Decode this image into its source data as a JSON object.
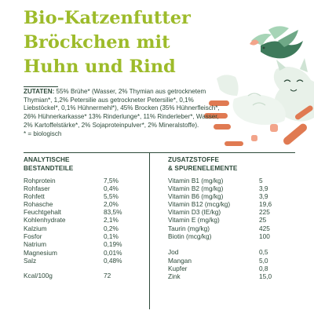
{
  "title": [
    "Bio-Katzenfutter",
    "Bröckchen mit",
    "Huhn und Rind"
  ],
  "ingredients": {
    "keyword": "ZUTATEN:",
    "text": "55% Brühe* (Wasser, 2% Thymian aus getrocknetem Thymian*, 1,2% Petersilie aus getrockneter Petersilie*, 0,1% Liebstöckel*, 0,1% Hühnermehl*), 45% Brocken (35% Hühnerfleisch*, 26% Hühnerkarkasse* 13% Rinderlunge*, 11% Rinderleber*, Wasser, 2% Kartoffelstärke*, 2% Sojaproteinpulver*, 2% Mineralstoffe).",
    "footnote": "* = biologisch"
  },
  "analytical": {
    "heading_line1": "ANALYTISCHE",
    "heading_line2": "BESTANDTEILE",
    "rows": [
      {
        "label": "Rohprotein",
        "value": "7,5%"
      },
      {
        "label": "Rohfaser",
        "value": "0,4%"
      },
      {
        "label": "Rohfett",
        "value": "5,5%"
      },
      {
        "label": "Rohasche",
        "value": "2,0%"
      },
      {
        "label": "Feuchtgehalt",
        "value": "83,5%"
      },
      {
        "label": "Kohlenhydrate",
        "value": "2,1%"
      },
      {
        "label": "Kalzium",
        "value": "0,2%"
      },
      {
        "label": "Fosfor",
        "value": "0,1%"
      },
      {
        "label": "Natrium",
        "value": "0,19%"
      },
      {
        "label": "Magnesium",
        "value": "0,01%"
      },
      {
        "label": "Salz",
        "value": "0,48%"
      },
      {
        "label": "Kcal/100g",
        "value": "72"
      }
    ]
  },
  "additives": {
    "heading_line1": "ZUSATZSTOFFE",
    "heading_line2": "& SPURENELEMENTE",
    "rows": [
      {
        "label": "Vitamin B1 (mg/kg)",
        "value": "5"
      },
      {
        "label": "Vitamin B2 (mg/kg)",
        "value": "3,9"
      },
      {
        "label": "Vitamin B6 (mg/kg)",
        "value": "3,9"
      },
      {
        "label": "Vitamin B12 (mcg/kg)",
        "value": "19,6"
      },
      {
        "label": "Vitamin D3 (IE/kg)",
        "value": "225"
      },
      {
        "label": "Vitamin E (mg/kg)",
        "value": "25"
      },
      {
        "label": "Taurin (mg/kg)",
        "value": "425"
      },
      {
        "label": "Biotin (mcg/kg)",
        "value": "100"
      },
      {
        "label": "Jod",
        "value": "0,5"
      },
      {
        "label": "Mangan",
        "value": "5,0"
      },
      {
        "label": "Kupfer",
        "value": "0,8"
      },
      {
        "label": "Zink",
        "value": "15,0"
      }
    ]
  },
  "colors": {
    "title_green": "#9dbb2a",
    "text_dark_green": "#2d4a3a",
    "illustration_orange": "#e07a52",
    "illustration_green": "#3e7a5b",
    "illustration_light_green": "#a6d4b6"
  }
}
